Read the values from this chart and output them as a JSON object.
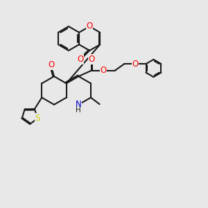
{
  "bg_color": "#e8e8e8",
  "bond_color": "#1a1a1a",
  "bond_width": 1.5,
  "atom_colors": {
    "O": "#ff0000",
    "N": "#0000cd",
    "S": "#cccc00",
    "C": "#1a1a1a"
  },
  "font_size": 8.5,
  "fig_width": 3.0,
  "fig_height": 3.0,
  "dpi": 100
}
